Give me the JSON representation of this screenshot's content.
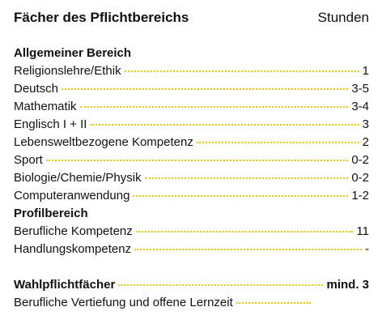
{
  "header": {
    "title": "Fächer des Pflichtbereichs",
    "hours": "Stunden"
  },
  "sections": [
    {
      "title": "Allgemeiner Bereich",
      "rows": [
        {
          "subject": "Religionslehre/Ethik",
          "hours": "1"
        },
        {
          "subject": "Deutsch",
          "hours": "3-5"
        },
        {
          "subject": "Mathematik",
          "hours": "3-4"
        },
        {
          "subject": "Englisch I + II",
          "hours": "3"
        },
        {
          "subject": "Lebensweltbezogene Kompetenz",
          "hours": "2"
        },
        {
          "subject": "Sport",
          "hours": "0-2"
        },
        {
          "subject": "Biologie/Chemie/Physik",
          "hours": "0-2"
        },
        {
          "subject": "Computeranwendung",
          "hours": "1-2"
        }
      ]
    },
    {
      "title": "Profilbereich",
      "rows": [
        {
          "subject": "Berufliche Kompetenz",
          "hours": "11"
        },
        {
          "subject": "Handlungskompetenz",
          "hours": "-"
        }
      ]
    }
  ],
  "elective": {
    "title": "Wahlpflichtfächer",
    "hours": "mind. 3",
    "rows": [
      {
        "subject": "Berufliche Vertiefung und offene Lernzeit"
      }
    ]
  }
}
